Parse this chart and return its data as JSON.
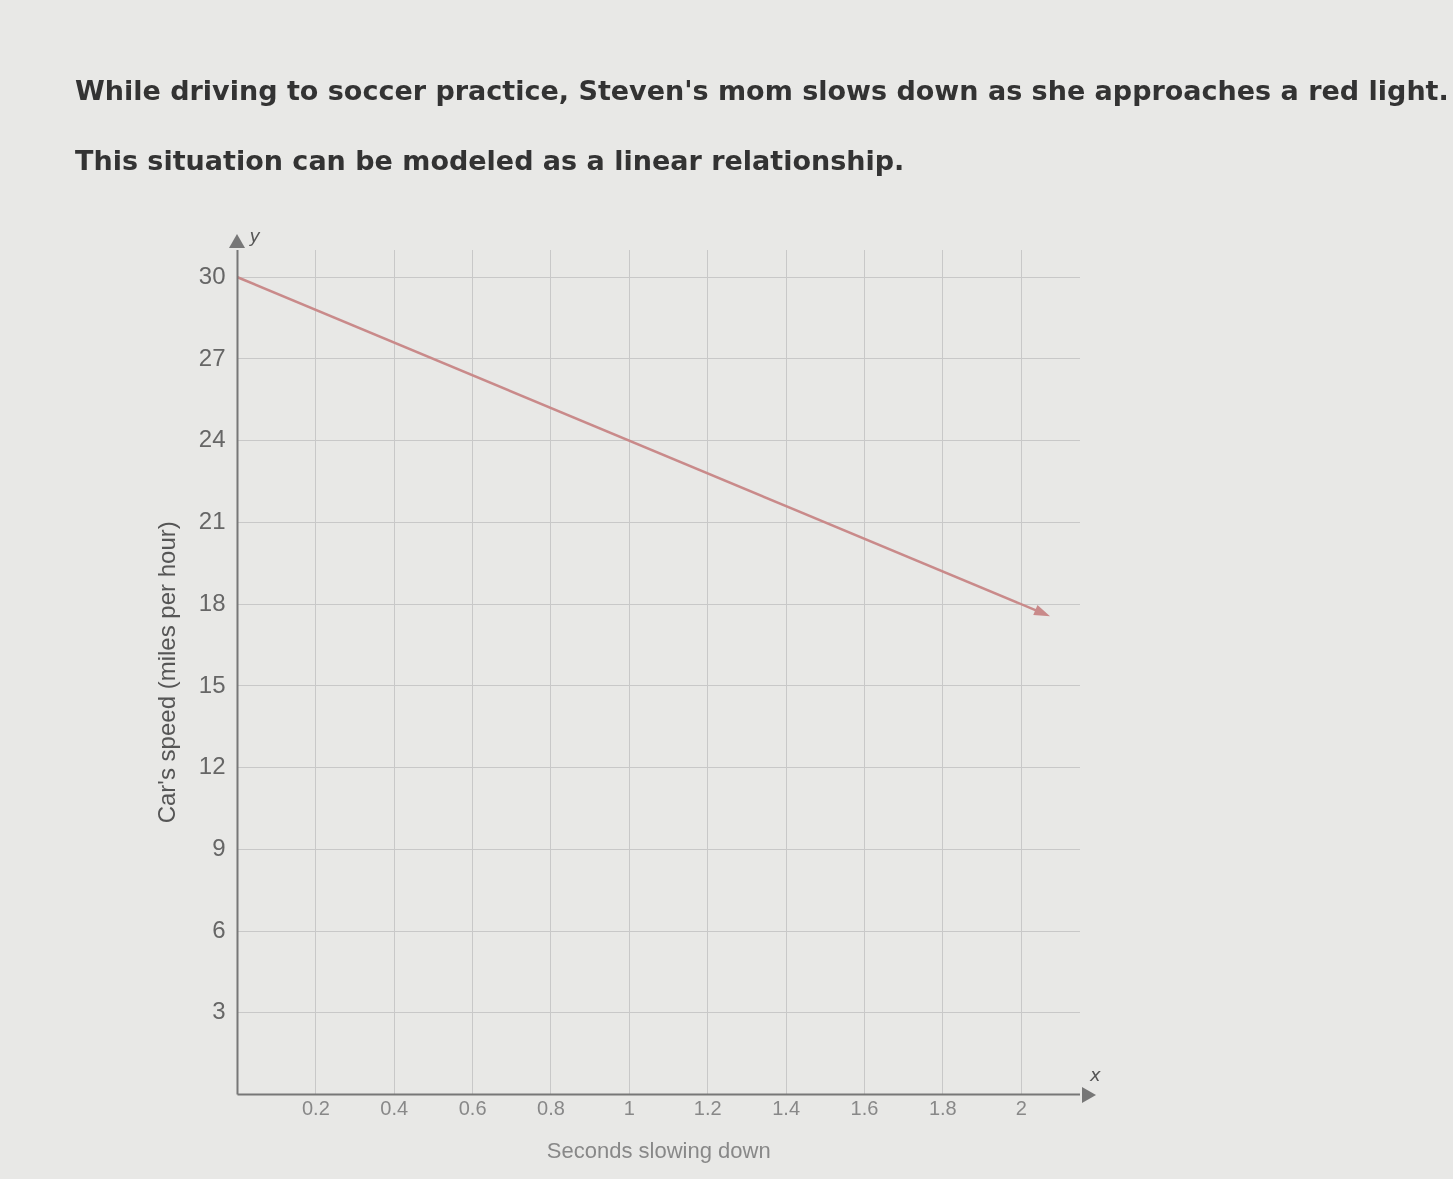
{
  "chart_data": {
    "type": "line",
    "title": "While driving to soccer practice, Steven's mom slows down as she approaches a red light.",
    "subtitle": "This situation can be modeled as a linear relationship.",
    "xlabel": "Seconds slowing down",
    "ylabel": "Car's speed (miles per hour)",
    "annotations": [
      "y",
      "x"
    ],
    "x": [
      0,
      2.05
    ],
    "series": [
      {
        "color": "#c98a8a",
        "values": [
          30,
          17.7
        ]
      }
    ],
    "xlim": [
      0,
      2.15
    ],
    "xticks": [
      0.2,
      0.4,
      0.6,
      0.8,
      1,
      1.2,
      1.4,
      1.6,
      1.8,
      2
    ],
    "ylim": [
      0,
      31
    ],
    "yticks": [
      3,
      6,
      9,
      12,
      15,
      18,
      21,
      24,
      27,
      30
    ],
    "grid": true,
    "legend": false,
    "line_style": "solid"
  }
}
